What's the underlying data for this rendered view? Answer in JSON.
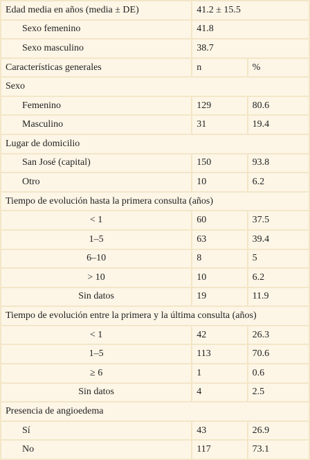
{
  "table": {
    "age": {
      "label": "Edad media en años (media ± DE)",
      "value": "41.2 ± 15.5",
      "rows": [
        [
          "Sexo femenino",
          "41.8"
        ],
        [
          "Sexo masculino",
          "38.7"
        ]
      ]
    },
    "header": [
      "Características generales",
      "n",
      "%"
    ],
    "sections": [
      {
        "title": "Sexo",
        "rows": [
          [
            "Femenino",
            "129",
            "80.6"
          ],
          [
            "Masculino",
            "31",
            "19.4"
          ]
        ]
      },
      {
        "title": "Lugar de domicilio",
        "rows": [
          [
            "San José (capital)",
            "150",
            "93.8"
          ],
          [
            "Otro",
            "10",
            "6.2"
          ]
        ]
      },
      {
        "title": "Tiempo de evolución hasta la primera consulta (años)",
        "rows": [
          [
            "< 1",
            "60",
            "37.5"
          ],
          [
            "1–5",
            "63",
            "39.4"
          ],
          [
            "6–10",
            "8",
            "5"
          ],
          [
            "> 10",
            "10",
            "6.2"
          ],
          [
            "Sin datos",
            "19",
            "11.9"
          ]
        ]
      },
      {
        "title": "Tiempo de evolución entre la primera y la última consulta (años)",
        "rows": [
          [
            "< 1",
            "42",
            "26.3"
          ],
          [
            "1–5",
            "113",
            "70.6"
          ],
          [
            "≥ 6",
            "1",
            "0.6"
          ],
          [
            "Sin datos",
            "4",
            "2.5"
          ]
        ]
      },
      {
        "title": "Presencia de angioedema",
        "rows": [
          [
            "Sí",
            "43",
            "26.9"
          ],
          [
            "No",
            "117",
            "73.1"
          ]
        ]
      }
    ]
  }
}
